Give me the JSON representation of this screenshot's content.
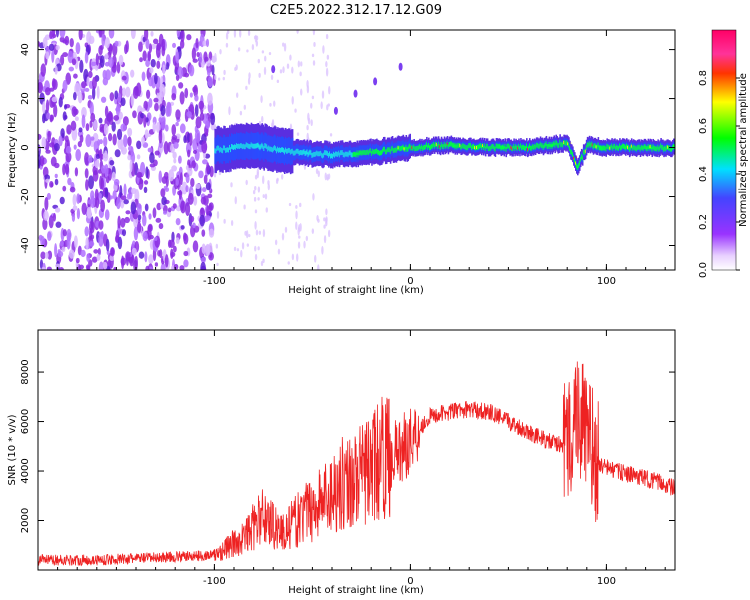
{
  "title": "C2E5.2022.312.17.12.G09",
  "colors": {
    "snr_line": "#ee2222",
    "axis": "#000000"
  },
  "chart_data": [
    {
      "type": "heatmap",
      "xlabel": "Height of straight line (km)",
      "ylabel": "Frequency (Hz)",
      "xlim": [
        -190,
        135
      ],
      "ylim": [
        -50,
        48
      ],
      "xticks": [
        -100,
        0,
        100
      ],
      "yticks": [
        -40,
        -20,
        0,
        20,
        40
      ],
      "colorbar": {
        "label": "Normalized spectral amplitude",
        "range": [
          0,
          1
        ],
        "ticks": [
          "0.0",
          "0.2",
          "0.4",
          "0.6",
          "0.8"
        ],
        "tick_values": [
          0,
          0.2,
          0.4,
          0.6,
          0.8
        ],
        "colors": [
          "#ffffff",
          "#9933ff",
          "#4444ff",
          "#00e0ff",
          "#00ff00",
          "#ffff00",
          "#ff3300",
          "#ff3399",
          "#ff0066"
        ]
      },
      "noise_region_x": [
        -190,
        -100
      ],
      "signal_trace": {
        "x": [
          -100,
          -80,
          -60,
          -40,
          -20,
          0,
          20,
          40,
          60,
          80,
          85,
          90,
          100,
          135
        ],
        "y": [
          -1,
          1,
          -2,
          -3,
          -2,
          0,
          1,
          0,
          0,
          2,
          -8,
          1,
          0,
          0
        ]
      }
    },
    {
      "type": "line",
      "xlabel": "Height of straight line (km)",
      "ylabel": "SNR (10 * v/v)",
      "xlim": [
        -190,
        135
      ],
      "ylim": [
        0,
        9700
      ],
      "xticks": [
        -100,
        0,
        100
      ],
      "yticks": [
        2000,
        4000,
        6000,
        8000
      ],
      "series": [
        {
          "x": [
            -190,
            -160,
            -130,
            -100,
            -85,
            -75,
            -65,
            -55,
            -45,
            -35,
            -25,
            -15,
            -5,
            0,
            10,
            20,
            30,
            40,
            50,
            60,
            70,
            80,
            85,
            90,
            95,
            105,
            115,
            125,
            135
          ],
          "y": [
            400,
            400,
            500,
            600,
            1300,
            2200,
            1500,
            2200,
            2800,
            3500,
            3800,
            4500,
            4800,
            5300,
            6200,
            6400,
            6500,
            6400,
            6000,
            5600,
            5200,
            5000,
            6500,
            5500,
            4300,
            4000,
            3800,
            3600,
            3300
          ]
        }
      ]
    }
  ]
}
